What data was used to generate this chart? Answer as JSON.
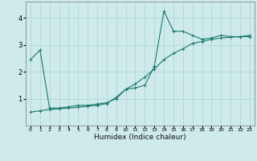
{
  "xlabel": "Humidex (Indice chaleur)",
  "ylabel": "",
  "bg_color": "#ceeaea",
  "grid_color": "#b0d8d8",
  "line_color": "#1a7a6e",
  "xlim": [
    -0.5,
    23.5
  ],
  "ylim": [
    0,
    4.6
  ],
  "x_ticks": [
    0,
    1,
    2,
    3,
    4,
    5,
    6,
    7,
    8,
    9,
    10,
    11,
    12,
    13,
    14,
    15,
    16,
    17,
    18,
    19,
    20,
    21,
    22,
    23
  ],
  "y_ticks": [
    1,
    2,
    3,
    4
  ],
  "line1_x": [
    0,
    1,
    2,
    3,
    4,
    5,
    6,
    7,
    8,
    9,
    10,
    11,
    12,
    13,
    14,
    15,
    16,
    17,
    18,
    19,
    20,
    21,
    22,
    23
  ],
  "line1_y": [
    2.45,
    2.8,
    0.65,
    0.65,
    0.7,
    0.75,
    0.75,
    0.8,
    0.85,
    1.0,
    1.35,
    1.4,
    1.5,
    2.2,
    4.25,
    3.5,
    3.5,
    3.35,
    3.2,
    3.25,
    3.35,
    3.3,
    3.3,
    3.3
  ],
  "line2_x": [
    0,
    1,
    2,
    3,
    4,
    5,
    6,
    7,
    8,
    9,
    10,
    11,
    12,
    13,
    14,
    15,
    16,
    17,
    18,
    19,
    20,
    21,
    22,
    23
  ],
  "line2_y": [
    0.5,
    0.55,
    0.6,
    0.62,
    0.65,
    0.68,
    0.72,
    0.75,
    0.82,
    1.05,
    1.35,
    1.55,
    1.8,
    2.1,
    2.45,
    2.68,
    2.85,
    3.05,
    3.12,
    3.2,
    3.25,
    3.28,
    3.3,
    3.35
  ]
}
